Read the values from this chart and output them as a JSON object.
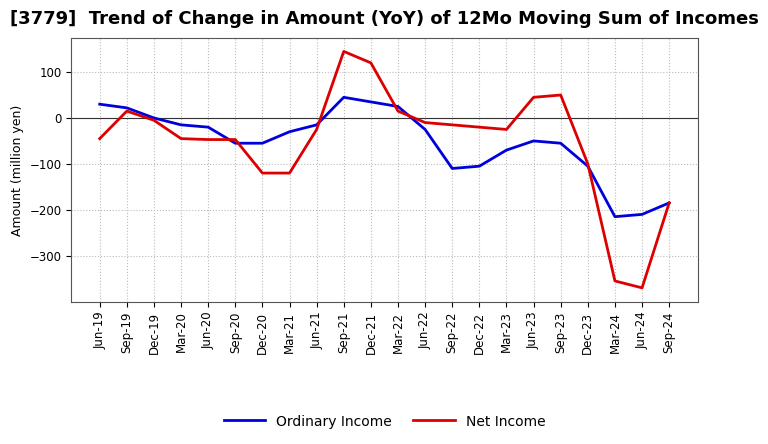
{
  "title": "[3779]  Trend of Change in Amount (YoY) of 12Mo Moving Sum of Incomes",
  "ylabel": "Amount (million yen)",
  "x_labels": [
    "Jun-19",
    "Sep-19",
    "Dec-19",
    "Mar-20",
    "Jun-20",
    "Sep-20",
    "Dec-20",
    "Mar-21",
    "Jun-21",
    "Sep-21",
    "Dec-21",
    "Mar-22",
    "Jun-22",
    "Sep-22",
    "Dec-22",
    "Mar-23",
    "Jun-23",
    "Sep-23",
    "Dec-23",
    "Mar-24",
    "Jun-24",
    "Sep-24"
  ],
  "ordinary_income": [
    30,
    22,
    0,
    -15,
    -20,
    -55,
    -55,
    -30,
    -15,
    45,
    35,
    25,
    -25,
    -110,
    -105,
    -70,
    -50,
    -55,
    -105,
    -215,
    -210,
    -185
  ],
  "net_income": [
    -45,
    15,
    -5,
    -45,
    -47,
    -47,
    -120,
    -120,
    -25,
    145,
    120,
    15,
    -10,
    -15,
    -20,
    -25,
    45,
    50,
    -100,
    -355,
    -370,
    -185
  ],
  "ordinary_color": "#0000dd",
  "net_color": "#dd0000",
  "background_color": "#ffffff",
  "plot_bg_color": "#ffffff",
  "grid_color": "#bbbbbb",
  "ylim": [
    -400,
    175
  ],
  "yticks": [
    -300,
    -200,
    -100,
    0,
    100
  ],
  "title_fontsize": 13,
  "legend_fontsize": 10,
  "tick_fontsize": 8.5,
  "ylabel_fontsize": 9
}
